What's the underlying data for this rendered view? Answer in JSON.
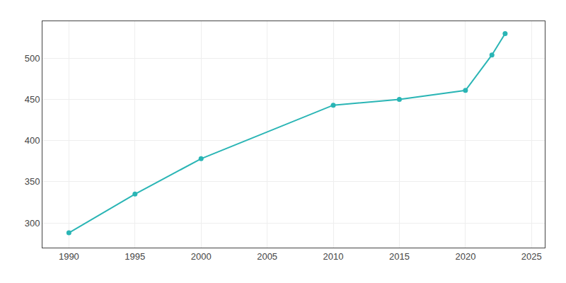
{
  "chart_data": {
    "type": "line",
    "x": [
      1990,
      1995,
      2000,
      2010,
      2015,
      2020,
      2022,
      2023
    ],
    "values": [
      288,
      335,
      378,
      443,
      450,
      461,
      504,
      530
    ],
    "color": "#2ab5b5",
    "marker": "circle",
    "xlim": [
      1988,
      2026
    ],
    "ylim": [
      270,
      545
    ],
    "xticks": [
      1990,
      1995,
      2000,
      2005,
      2010,
      2015,
      2020,
      2025
    ],
    "yticks": [
      300,
      350,
      400,
      450,
      500
    ],
    "grid": true
  }
}
